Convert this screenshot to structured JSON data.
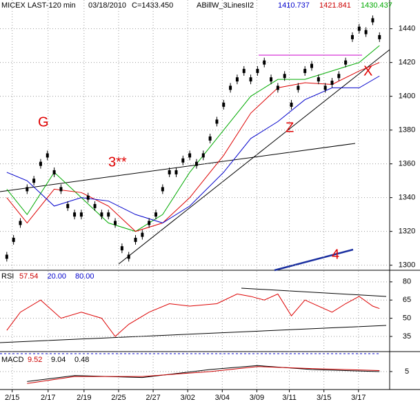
{
  "chart_data": [
    {
      "type": "candles",
      "title": "MICEX LAST-120 min",
      "date": "03/18/2010",
      "close_label": "C=1433.450",
      "indicator": "ABillW_3LinesII2",
      "indicator_values": [
        {
          "text": "1410.737",
          "color": "#0000cc"
        },
        {
          "text": "1421.841",
          "color": "#cc0000"
        },
        {
          "text": "1430.437",
          "color": "#00aa00"
        }
      ],
      "annotations": [
        "G",
        "3**",
        "Z",
        "X",
        "4"
      ],
      "x": [
        0,
        1,
        2,
        3,
        4,
        5,
        6,
        7,
        8,
        9,
        10,
        11,
        12,
        13,
        14,
        15,
        16,
        17,
        18,
        19,
        20,
        21,
        22,
        23,
        24,
        25,
        26,
        27,
        28,
        29,
        30,
        31,
        32,
        33,
        34,
        35,
        36,
        37,
        38,
        39,
        40,
        41,
        42,
        43,
        44,
        45,
        46,
        47,
        48,
        49,
        50,
        51,
        52,
        53,
        54,
        55
      ],
      "values": [
        1305,
        1315,
        1325,
        1345,
        1350,
        1360,
        1365,
        1355,
        1345,
        1335,
        1330,
        1330,
        1340,
        1335,
        1330,
        1330,
        1325,
        1310,
        1305,
        1315,
        1318,
        1325,
        1330,
        1345,
        1355,
        1355,
        1362,
        1365,
        1360,
        1365,
        1375,
        1385,
        1395,
        1405,
        1410,
        1415,
        1410,
        1415,
        1420,
        1410,
        1405,
        1412,
        1395,
        1405,
        1415,
        1418,
        1410,
        1405,
        1408,
        1412,
        1420,
        1435,
        1440,
        1438,
        1445,
        1435
      ],
      "color": "#000000",
      "series": [
        {
          "name": "green",
          "color": "#00aa00",
          "x": [
            0,
            3,
            7,
            11,
            15,
            19,
            23,
            27,
            32,
            36,
            40,
            44,
            48,
            52,
            55
          ],
          "values": [
            1345,
            1330,
            1355,
            1340,
            1325,
            1320,
            1330,
            1355,
            1380,
            1400,
            1410,
            1410,
            1415,
            1420,
            1430
          ]
        },
        {
          "name": "red",
          "color": "#dd0000",
          "x": [
            0,
            3,
            7,
            11,
            15,
            19,
            23,
            27,
            32,
            36,
            40,
            44,
            48,
            52,
            55
          ],
          "values": [
            1340,
            1325,
            1345,
            1343,
            1335,
            1320,
            1325,
            1340,
            1365,
            1390,
            1405,
            1408,
            1407,
            1415,
            1420
          ]
        },
        {
          "name": "blue",
          "color": "#0000cc",
          "x": [
            0,
            3,
            7,
            11,
            15,
            19,
            23,
            27,
            32,
            36,
            40,
            44,
            48,
            52,
            55
          ],
          "values": [
            1355,
            1350,
            1335,
            1340,
            1338,
            1330,
            1325,
            1335,
            1355,
            1375,
            1385,
            1398,
            1405,
            1405,
            1412
          ]
        }
      ],
      "xlim": [
        -1,
        56.5
      ],
      "ylim": [
        1297,
        1457
      ],
      "yticks": [
        1300,
        1320,
        1340,
        1360,
        1380,
        1400,
        1420,
        1440
      ],
      "xticks": [
        {
          "value": 0.8,
          "label": "2/15"
        },
        {
          "value": 6.1,
          "label": "2/17"
        },
        {
          "value": 11.4,
          "label": "2/19"
        },
        {
          "value": 16.5,
          "label": "2/25"
        },
        {
          "value": 21.6,
          "label": "2/27"
        },
        {
          "value": 26.7,
          "label": "3/02"
        },
        {
          "value": 31.8,
          "label": "3/04"
        },
        {
          "value": 36.9,
          "label": "3/09"
        },
        {
          "value": 41.7,
          "label": "3/11"
        },
        {
          "value": 46.8,
          "label": "3/15"
        },
        {
          "value": 51.9,
          "label": "3/17"
        }
      ],
      "grid": true
    },
    {
      "type": "line",
      "title": "RSI",
      "header_values": [
        {
          "text": "57.54",
          "color": "#cc0000"
        },
        {
          "text": "20.00",
          "color": "#0000cc"
        },
        {
          "text": "80.00",
          "color": "#0000cc"
        }
      ],
      "series": [
        {
          "name": "RSI",
          "color": "#dd0000",
          "x": [
            0,
            2,
            5,
            8,
            11,
            14,
            16,
            18,
            21,
            24,
            27,
            31,
            34,
            36,
            38,
            40,
            42,
            44,
            46,
            48,
            50,
            52,
            54,
            55
          ],
          "values": [
            40,
            55,
            65,
            50,
            55,
            50,
            35,
            45,
            55,
            62,
            60,
            62,
            70,
            68,
            65,
            70,
            52,
            65,
            60,
            55,
            62,
            68,
            60,
            58
          ]
        }
      ],
      "xlim": [
        -1,
        56.5
      ],
      "ylim": [
        22.5,
        89
      ],
      "yticks": [
        35,
        50,
        65,
        80
      ],
      "grid": true
    },
    {
      "type": "line",
      "title": "MACD",
      "header_values": [
        {
          "text": "9.52",
          "color": "#cc0000"
        },
        {
          "text": "9.04",
          "color": "#000000"
        },
        {
          "text": "0.48",
          "color": "#000000"
        }
      ],
      "series": [
        {
          "name": "MACD",
          "color": "#000000",
          "x": [
            3,
            10,
            20,
            30,
            37,
            45,
            55
          ],
          "values": [
            0,
            3,
            2,
            6,
            8,
            6,
            5
          ]
        },
        {
          "name": "Signal",
          "color": "#cc0000",
          "x": [
            3,
            10,
            20,
            30,
            37,
            45,
            55
          ],
          "values": [
            -1,
            2.5,
            2.5,
            5,
            7.5,
            6.5,
            5.5
          ]
        }
      ],
      "xlim": [
        -1,
        56.5
      ],
      "ylim": [
        -3,
        14
      ],
      "yticks": [
        5
      ],
      "grid": true
    }
  ]
}
